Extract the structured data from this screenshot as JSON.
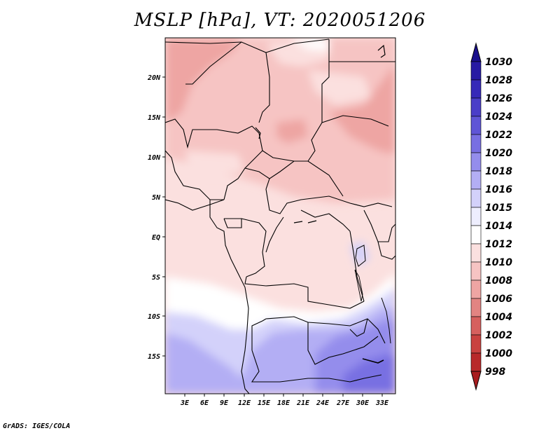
{
  "title": "MSLP [hPa], VT: 2020051206",
  "credit": "GrADS: IGES/COLA",
  "map": {
    "lat_labels": [
      "20N",
      "15N",
      "10N",
      "5N",
      "EQ",
      "5S",
      "10S",
      "15S"
    ],
    "lon_labels": [
      "3E",
      "6E",
      "9E",
      "12E",
      "15E",
      "18E",
      "21E",
      "24E",
      "27E",
      "30E",
      "33E"
    ]
  },
  "colorbar": {
    "levels": [
      "1030",
      "1028",
      "1026",
      "1024",
      "1022",
      "1020",
      "1018",
      "1016",
      "1015",
      "1014",
      "1012",
      "1010",
      "1008",
      "1006",
      "1004",
      "1002",
      "1000",
      "998"
    ],
    "colors": [
      "#1a0f8c",
      "#271aa3",
      "#3629b8",
      "#4a3ec8",
      "#5f55d6",
      "#786fe2",
      "#948dec",
      "#b3aef4",
      "#d3d1fa",
      "#eeeefe",
      "#ffffff",
      "#fbe0df",
      "#f6c4c3",
      "#eea5a3",
      "#e28482",
      "#d6605e",
      "#c94240",
      "#b8292a",
      "#a81c1f"
    ]
  }
}
